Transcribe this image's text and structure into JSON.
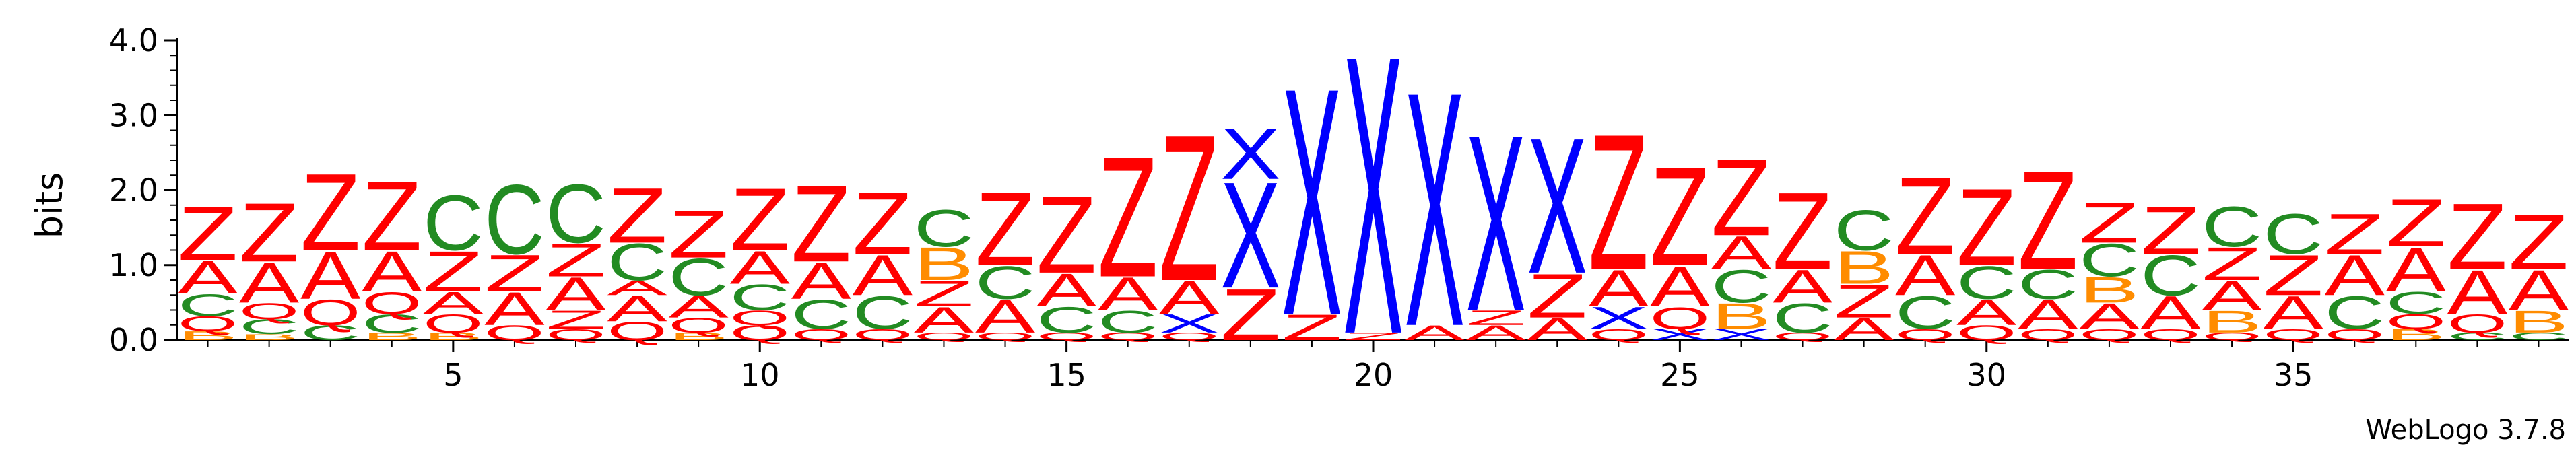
{
  "chart_data": {
    "type": "sequence-logo",
    "ylabel": "bits",
    "ylim": [
      0,
      4.0
    ],
    "yticks": [
      "0.0",
      "1.0",
      "2.0",
      "3.0",
      "4.0"
    ],
    "xticks": [
      5,
      10,
      15,
      20,
      25,
      30,
      35
    ],
    "positions_count": 39,
    "caption": "WebLogo 3.7.8",
    "colors": {
      "Z": "#ff0000",
      "A": "#ff0000",
      "Q": "#ff0000",
      "C": "#228b22",
      "B": "#ff8c00",
      "X": "#0000ff"
    },
    "stacks": [
      [
        [
          "B",
          0.12
        ],
        [
          "Q",
          0.2
        ],
        [
          "C",
          0.3
        ],
        [
          "A",
          0.45
        ],
        [
          "Z",
          0.73
        ]
      ],
      [
        [
          "B",
          0.08
        ],
        [
          "C",
          0.2
        ],
        [
          "Q",
          0.22
        ],
        [
          "A",
          0.55
        ],
        [
          "Z",
          0.8
        ]
      ],
      [
        [
          "C",
          0.2
        ],
        [
          "Q",
          0.35
        ],
        [
          "A",
          0.65
        ],
        [
          "Z",
          1.05
        ]
      ],
      [
        [
          "B",
          0.1
        ],
        [
          "C",
          0.25
        ],
        [
          "Q",
          0.3
        ],
        [
          "A",
          0.55
        ],
        [
          "Z",
          0.95
        ]
      ],
      [
        [
          "B",
          0.1
        ],
        [
          "Q",
          0.25
        ],
        [
          "A",
          0.3
        ],
        [
          "Z",
          0.55
        ],
        [
          "C",
          0.75
        ]
      ],
      [
        [
          "Q",
          0.2
        ],
        [
          "A",
          0.45
        ],
        [
          "Z",
          0.5
        ],
        [
          "C",
          0.95
        ]
      ],
      [
        [
          "Q",
          0.15
        ],
        [
          "Z",
          0.25
        ],
        [
          "A",
          0.45
        ],
        [
          "Z",
          0.45
        ],
        [
          "C",
          0.8
        ]
      ],
      [
        [
          "Q",
          0.25
        ],
        [
          "A",
          0.35
        ],
        [
          "A",
          0.2
        ],
        [
          "C",
          0.5
        ],
        [
          "Z",
          0.75
        ]
      ],
      [
        [
          "B",
          0.1
        ],
        [
          "Q",
          0.2
        ],
        [
          "A",
          0.3
        ],
        [
          "C",
          0.5
        ],
        [
          "Z",
          0.65
        ]
      ],
      [
        [
          "Q",
          0.2
        ],
        [
          "Q",
          0.2
        ],
        [
          "C",
          0.35
        ],
        [
          "A",
          0.45
        ],
        [
          "Z",
          0.85
        ]
      ],
      [
        [
          "Q",
          0.15
        ],
        [
          "C",
          0.4
        ],
        [
          "A",
          0.5
        ],
        [
          "Z",
          1.05
        ]
      ],
      [
        [
          "Q",
          0.15
        ],
        [
          "C",
          0.45
        ],
        [
          "A",
          0.55
        ],
        [
          "Z",
          0.85
        ]
      ],
      [
        [
          "Q",
          0.1
        ],
        [
          "A",
          0.35
        ],
        [
          "Z",
          0.35
        ],
        [
          "B",
          0.45
        ],
        [
          "C",
          0.5
        ]
      ],
      [
        [
          "Q",
          0.1
        ],
        [
          "A",
          0.45
        ],
        [
          "C",
          0.45
        ],
        [
          "Z",
          1.0
        ]
      ],
      [
        [
          "Q",
          0.1
        ],
        [
          "C",
          0.35
        ],
        [
          "A",
          0.45
        ],
        [
          "Z",
          1.05
        ]
      ],
      [
        [
          "Q",
          0.1
        ],
        [
          "C",
          0.3
        ],
        [
          "A",
          0.45
        ],
        [
          "Z",
          1.65
        ]
      ],
      [
        [
          "Q",
          0.1
        ],
        [
          "X",
          0.25
        ],
        [
          "A",
          0.45
        ],
        [
          "Z",
          2.0
        ]
      ],
      [
        [
          "Z",
          0.7
        ],
        [
          "X",
          1.45
        ],
        [
          "X",
          0.7
        ]
      ],
      [
        [
          "Z",
          0.35
        ],
        [
          "X",
          3.1
        ]
      ],
      [
        [
          "Z",
          0.1
        ],
        [
          "X",
          3.8
        ]
      ],
      [
        [
          "A",
          0.2
        ],
        [
          "X",
          3.2
        ]
      ],
      [
        [
          "A",
          0.2
        ],
        [
          "Z",
          0.2
        ],
        [
          "X",
          2.4
        ]
      ],
      [
        [
          "A",
          0.3
        ],
        [
          "Z",
          0.6
        ],
        [
          "X",
          1.85
        ]
      ],
      [
        [
          "Q",
          0.15
        ],
        [
          "X",
          0.3
        ],
        [
          "A",
          0.5
        ],
        [
          "Z",
          1.85
        ]
      ],
      [
        [
          "X",
          0.15
        ],
        [
          "Q",
          0.3
        ],
        [
          "A",
          0.55
        ],
        [
          "Z",
          1.35
        ]
      ],
      [
        [
          "X",
          0.15
        ],
        [
          "B",
          0.35
        ],
        [
          "C",
          0.45
        ],
        [
          "A",
          0.45
        ],
        [
          "Z",
          1.05
        ]
      ],
      [
        [
          "Q",
          0.1
        ],
        [
          "C",
          0.4
        ],
        [
          "A",
          0.45
        ],
        [
          "Z",
          1.05
        ]
      ],
      [
        [
          "A",
          0.3
        ],
        [
          "Z",
          0.45
        ],
        [
          "B",
          0.45
        ],
        [
          "C",
          0.55
        ]
      ],
      [
        [
          "Q",
          0.15
        ],
        [
          "C",
          0.45
        ],
        [
          "A",
          0.55
        ],
        [
          "Z",
          1.05
        ]
      ],
      [
        [
          "Q",
          0.2
        ],
        [
          "A",
          0.35
        ],
        [
          "C",
          0.45
        ],
        [
          "Z",
          1.05
        ]
      ],
      [
        [
          "Q",
          0.15
        ],
        [
          "A",
          0.4
        ],
        [
          "C",
          0.4
        ],
        [
          "Z",
          1.35
        ]
      ],
      [
        [
          "Q",
          0.15
        ],
        [
          "A",
          0.35
        ],
        [
          "B",
          0.35
        ],
        [
          "C",
          0.45
        ],
        [
          "Z",
          0.55
        ]
      ],
      [
        [
          "Q",
          0.15
        ],
        [
          "A",
          0.45
        ],
        [
          "C",
          0.55
        ],
        [
          "Z",
          0.65
        ]
      ],
      [
        [
          "Q",
          0.1
        ],
        [
          "B",
          0.3
        ],
        [
          "A",
          0.4
        ],
        [
          "Z",
          0.45
        ],
        [
          "C",
          0.55
        ]
      ],
      [
        [
          "Q",
          0.15
        ],
        [
          "A",
          0.45
        ],
        [
          "Z",
          0.55
        ],
        [
          "C",
          0.55
        ]
      ],
      [
        [
          "Q",
          0.15
        ],
        [
          "C",
          0.45
        ],
        [
          "A",
          0.55
        ],
        [
          "Z",
          0.55
        ]
      ],
      [
        [
          "B",
          0.15
        ],
        [
          "Q",
          0.2
        ],
        [
          "C",
          0.3
        ],
        [
          "A",
          0.6
        ],
        [
          "Z",
          0.65
        ]
      ],
      [
        [
          "C",
          0.1
        ],
        [
          "Q",
          0.25
        ],
        [
          "A",
          0.6
        ],
        [
          "Z",
          0.9
        ]
      ],
      [
        [
          "C",
          0.1
        ],
        [
          "B",
          0.3
        ],
        [
          "A",
          0.55
        ],
        [
          "Z",
          0.75
        ]
      ]
    ]
  }
}
